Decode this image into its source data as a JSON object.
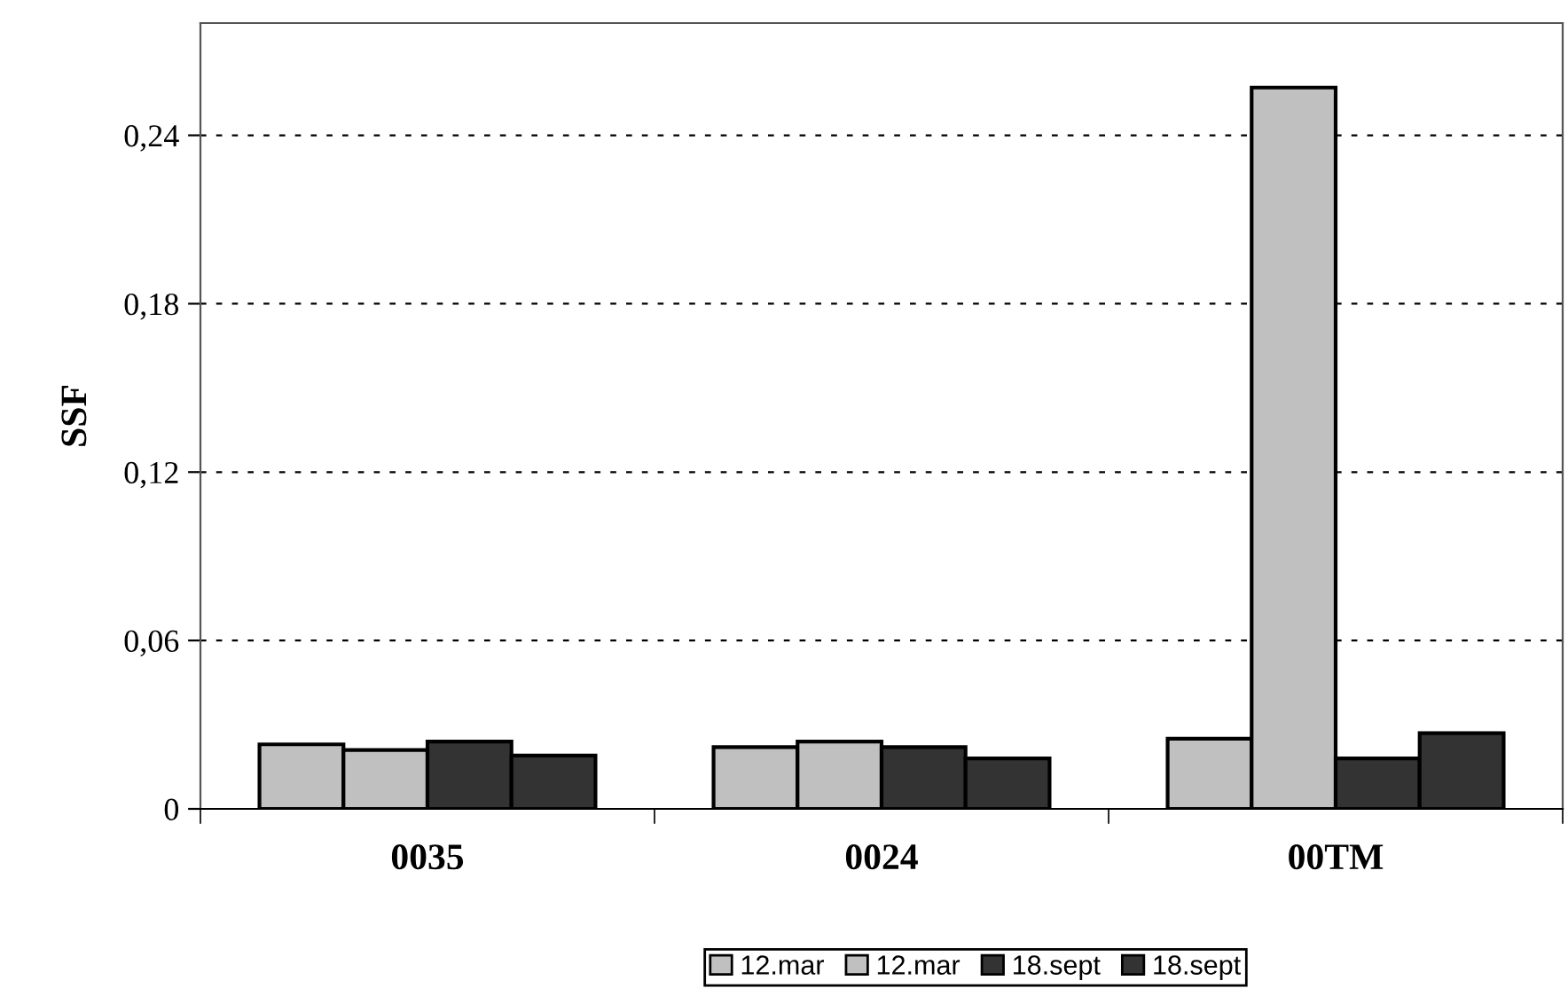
{
  "chart_data": {
    "type": "bar",
    "ylabel": "SSF",
    "categories": [
      "0035",
      "0024",
      "00TM"
    ],
    "series": [
      {
        "name": "12.mar",
        "color": "#c0c0c0",
        "values": [
          0.023,
          0.022,
          0.025
        ]
      },
      {
        "name": "12.mar",
        "color": "#c0c0c0",
        "values": [
          0.021,
          0.024,
          0.257
        ]
      },
      {
        "name": "18.sept",
        "color": "#333333",
        "values": [
          0.024,
          0.022,
          0.018
        ]
      },
      {
        "name": "18.sept",
        "color": "#333333",
        "values": [
          0.019,
          0.018,
          0.027
        ]
      }
    ],
    "ylim": [
      0,
      0.28
    ],
    "yticks": [
      {
        "value": 0,
        "label": "0"
      },
      {
        "value": 0.06,
        "label": "0,06"
      },
      {
        "value": 0.12,
        "label": "0,12"
      },
      {
        "value": 0.18,
        "label": "0,18"
      },
      {
        "value": 0.24,
        "label": "0,24"
      }
    ],
    "grid": "y",
    "legend": "bottom"
  }
}
